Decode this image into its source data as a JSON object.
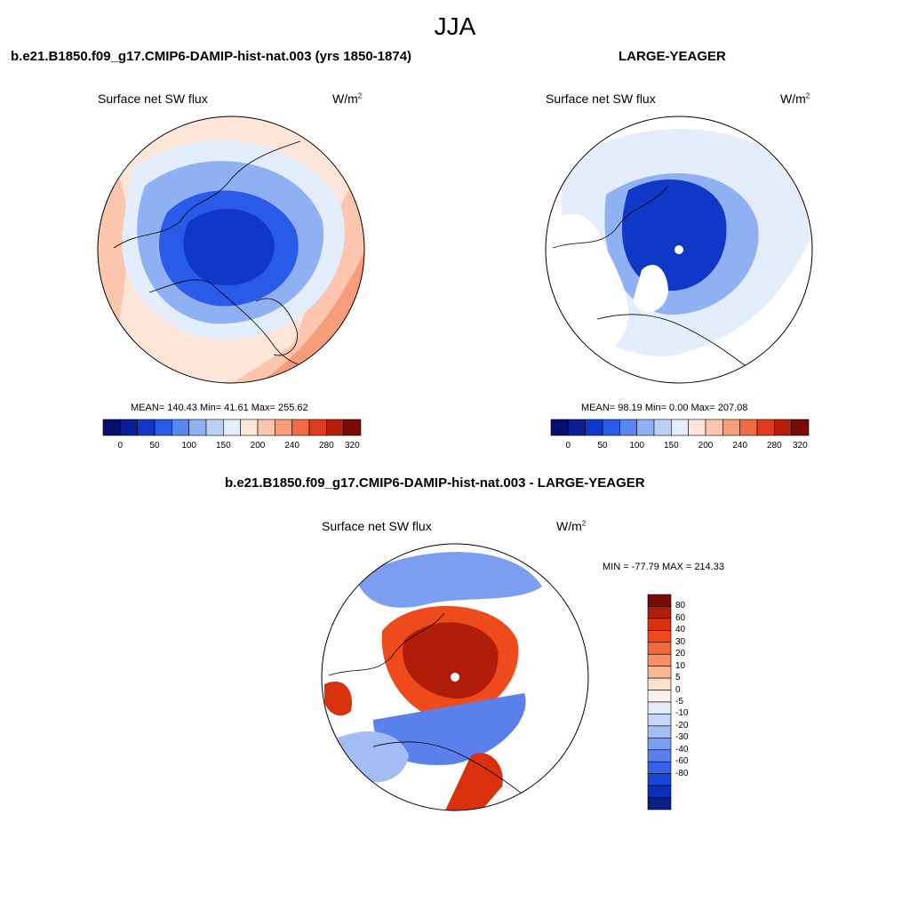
{
  "season": "JJA",
  "colors": {
    "abs_scale": [
      "#060f6b",
      "#0a1f96",
      "#0f38c9",
      "#2a5ae8",
      "#5a86f0",
      "#8fb0f2",
      "#bcd0f6",
      "#e3edfb",
      "#fde6d8",
      "#fbc6ad",
      "#f79d7c",
      "#f26a45",
      "#e23a1c",
      "#b61e0c",
      "#7a0a04"
    ],
    "diff_scale": [
      "#7a0a04",
      "#b21d0a",
      "#d9300d",
      "#ef4a1c",
      "#f2693d",
      "#f69066",
      "#f9b796",
      "#fde0cc",
      "#fdf3ea",
      "#e3edfb",
      "#c6d6f8",
      "#a3bdf4",
      "#7c9ef0",
      "#5a80ec",
      "#3561e8",
      "#1546da",
      "#0a2fbd",
      "#08207e"
    ],
    "land_outline": "#000000",
    "missing": "#ffffff"
  },
  "panels": [
    {
      "title": "b.e21.B1850.f09_g17.CMIP6-DAMIP-hist-nat.003 (yrs 1850-1874)",
      "variable": "Surface net SW flux",
      "units": "W/m",
      "units_sup": "2",
      "stats": "MEAN= 140.43  Min=  41.61  Max= 255.62",
      "colorbar_labels": [
        "0",
        "50",
        "100",
        "150",
        "200",
        "240",
        "280",
        "320"
      ]
    },
    {
      "title": "LARGE-YEAGER",
      "variable": "Surface net SW flux",
      "units": "W/m",
      "units_sup": "2",
      "stats": "MEAN=  98.19  Min=   0.00  Max= 207.08",
      "colorbar_labels": [
        "0",
        "50",
        "100",
        "150",
        "200",
        "240",
        "280",
        "320"
      ]
    },
    {
      "title": "b.e21.B1850.f09_g17.CMIP6-DAMIP-hist-nat.003 - LARGE-YEAGER",
      "variable": "Surface net SW flux",
      "units": "W/m",
      "units_sup": "2",
      "stats": "MIN = -77.79 MAX = 214.33",
      "colorbar_labels": [
        "80",
        "60",
        "40",
        "30",
        "20",
        "10",
        "5",
        "0",
        "-5",
        "-10",
        "-20",
        "-30",
        "-40",
        "-60",
        "-80"
      ]
    }
  ]
}
